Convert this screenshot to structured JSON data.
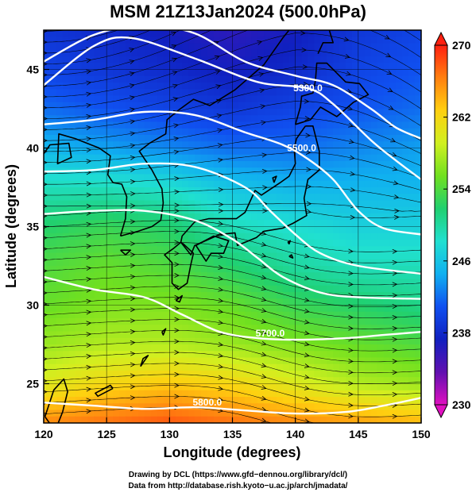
{
  "chart_data": {
    "type": "heatmap",
    "title": "MSM 21Z13Jan2024 (500.0hPa)",
    "xlabel": "Longitude (degrees)",
    "ylabel": "Latitude  (degrees)",
    "xlim": [
      120,
      150
    ],
    "ylim": [
      22.5,
      47.5
    ],
    "x_ticks": [
      "120",
      "125",
      "130",
      "135",
      "140",
      "145",
      "150"
    ],
    "y_ticks": [
      "25",
      "30",
      "35",
      "40",
      "45"
    ],
    "colorbar": {
      "min": 230,
      "max": 270,
      "ticks": [
        "230",
        "238",
        "246",
        "254",
        "262",
        "270"
      ],
      "colors": [
        "#e010c0",
        "#6010b0",
        "#1020c0",
        "#1050f0",
        "#10b0f0",
        "#20e0d0",
        "#20d070",
        "#70e020",
        "#d0f020",
        "#ffd010",
        "#ff8010",
        "#ff2010"
      ]
    },
    "temperature_field": {
      "x": [
        120,
        125,
        130,
        135,
        140,
        145,
        150
      ],
      "y": [
        47.5,
        45,
        42.5,
        40,
        37.5,
        35,
        32.5,
        30,
        27.5,
        25,
        22.5
      ],
      "values": [
        [
          239,
          238,
          237,
          236,
          237,
          239,
          240
        ],
        [
          240,
          239,
          238,
          237,
          238,
          240,
          241
        ],
        [
          242,
          241,
          240,
          239,
          240,
          241,
          242
        ],
        [
          245,
          244,
          243,
          242,
          242,
          243,
          244
        ],
        [
          249,
          249,
          248,
          246,
          245,
          245,
          245
        ],
        [
          252,
          253,
          252,
          249,
          248,
          247,
          247
        ],
        [
          254,
          255,
          254,
          252,
          250,
          249,
          249
        ],
        [
          255,
          256,
          256,
          255,
          253,
          252,
          251
        ],
        [
          257,
          258,
          258,
          257,
          256,
          255,
          254
        ],
        [
          260,
          262,
          263,
          262,
          260,
          258,
          257
        ],
        [
          266,
          267,
          268,
          267,
          266,
          265,
          264
        ]
      ]
    },
    "contours": [
      {
        "label": "5300.0",
        "label_at": [
          141,
          43.6
        ],
        "points": [
          [
            120,
            45.5
          ],
          [
            124,
            47.2
          ],
          [
            128,
            47.8
          ],
          [
            132,
            47.3
          ],
          [
            136,
            45.5
          ],
          [
            140,
            44.6
          ],
          [
            143,
            44.0
          ],
          [
            146,
            42.5
          ],
          [
            148,
            41.3
          ],
          [
            150,
            40.6
          ]
        ]
      },
      {
        "label": "",
        "points": [
          [
            120,
            44.0
          ],
          [
            124,
            46.5
          ],
          [
            127,
            47.0
          ],
          [
            132,
            45.7
          ],
          [
            137,
            44.2
          ],
          [
            141,
            43.8
          ],
          [
            143,
            42.8
          ],
          [
            146,
            40.5
          ],
          [
            148,
            39.2
          ],
          [
            150,
            38.0
          ]
        ]
      },
      {
        "label": "5500.0",
        "label_at": [
          140.5,
          39.8
        ],
        "points": [
          [
            120,
            41.5
          ],
          [
            124,
            41.8
          ],
          [
            128,
            42.3
          ],
          [
            132,
            42.1
          ],
          [
            136,
            41.0
          ],
          [
            139,
            40.2
          ],
          [
            141,
            39.3
          ],
          [
            143,
            38.0
          ],
          [
            145,
            36.0
          ],
          [
            147,
            34.9
          ],
          [
            150,
            34.5
          ]
        ]
      },
      {
        "label": "",
        "points": [
          [
            120,
            38.5
          ],
          [
            124,
            38.6
          ],
          [
            128,
            39.0
          ],
          [
            132,
            38.8
          ],
          [
            136,
            37.5
          ],
          [
            138,
            36.0
          ],
          [
            140,
            34.5
          ],
          [
            142,
            33.3
          ],
          [
            145,
            32.5
          ],
          [
            150,
            32.0
          ]
        ]
      },
      {
        "label": "",
        "points": [
          [
            120,
            35.8
          ],
          [
            124,
            36.0
          ],
          [
            128,
            36.0
          ],
          [
            132,
            35.4
          ],
          [
            135,
            34.2
          ],
          [
            137,
            33.0
          ],
          [
            139,
            31.8
          ],
          [
            142,
            30.8
          ],
          [
            145,
            30.5
          ],
          [
            150,
            30.4
          ]
        ]
      },
      {
        "label": "5700.0",
        "label_at": [
          138,
          28.0
        ],
        "points": [
          [
            120,
            31.8
          ],
          [
            124,
            31.0
          ],
          [
            128,
            30.5
          ],
          [
            131,
            29.4
          ],
          [
            134,
            28.3
          ],
          [
            137,
            27.9
          ],
          [
            140,
            27.8
          ],
          [
            144,
            27.9
          ],
          [
            147,
            28.1
          ],
          [
            150,
            28.3
          ]
        ]
      },
      {
        "label": "5800.0",
        "label_at": [
          133,
          23.6
        ],
        "points": [
          [
            120,
            23.8
          ],
          [
            124,
            23.6
          ],
          [
            128,
            23.4
          ],
          [
            132,
            23.5
          ],
          [
            136,
            23.3
          ],
          [
            140,
            23.1
          ],
          [
            144,
            23.2
          ],
          [
            147,
            23.6
          ],
          [
            150,
            24.1
          ]
        ]
      }
    ]
  },
  "credits": {
    "line1": "Drawing by DCL (https://www.gfd−dennou.org/library/dcl/)",
    "line2": "Data from http://database.rish.kyoto−u.ac.jp/arch/jmadata/"
  }
}
